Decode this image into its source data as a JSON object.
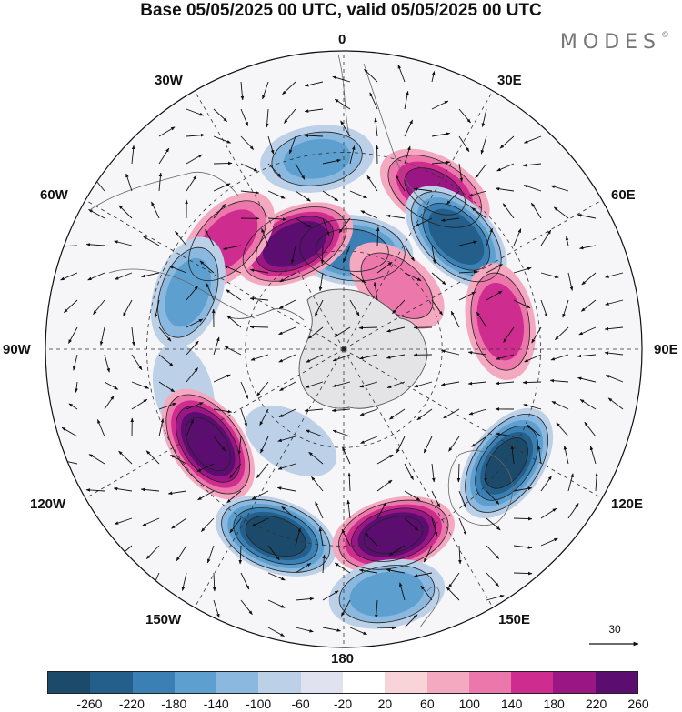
{
  "title": "Base 05/05/2025 00 UTC, valid 05/05/2025 00 UTC",
  "brand": "MODES",
  "brand_mark": "©",
  "longitude_labels": {
    "top": "0",
    "bottom": "180",
    "left": "90W",
    "right": "90E",
    "nw30": "30W",
    "ne30": "30E",
    "nw60": "60W",
    "ne60": "60E",
    "sw120": "120W",
    "se120": "120E",
    "sw150": "150W",
    "se150": "150E"
  },
  "vector_scale_label": "30",
  "colorbar": {
    "colors": [
      "#1b4a6b",
      "#235f8a",
      "#3a80b4",
      "#5d9fcf",
      "#8ab8de",
      "#bcd0e8",
      "#e1e2f0",
      "#ffffff",
      "#f8d4d8",
      "#f5a9c1",
      "#ec77ab",
      "#cf2c8f",
      "#9a1684",
      "#5b0d70"
    ],
    "ticks": [
      "-260",
      "-220",
      "-180",
      "-140",
      "-100",
      "-60",
      "-20",
      "20",
      "60",
      "100",
      "140",
      "180",
      "220",
      "260"
    ]
  },
  "chart_data": {
    "type": "heatmap",
    "projection": "south polar stereographic",
    "title": "Base 05/05/2025 00 UTC, valid 05/05/2025 00 UTC",
    "field_range": [
      -260,
      260
    ],
    "field_levels": [
      -260,
      -220,
      -180,
      -140,
      -100,
      -60,
      -20,
      20,
      60,
      100,
      140,
      180,
      220,
      260
    ],
    "vector_reference": 30,
    "anomaly_centers": [
      {
        "lon": -8,
        "colat": 58,
        "value": -120
      },
      {
        "lon": 30,
        "colat": 55,
        "value": 170
      },
      {
        "lon": 45,
        "colat": 48,
        "value": -230
      },
      {
        "lon": 5,
        "colat": 30,
        "value": -190
      },
      {
        "lon": -25,
        "colat": 35,
        "value": 230
      },
      {
        "lon": -47,
        "colat": 48,
        "value": 140
      },
      {
        "lon": -70,
        "colat": 50,
        "value": -130
      },
      {
        "lon": 80,
        "colat": 48,
        "value": 150
      },
      {
        "lon": -105,
        "colat": 50,
        "value": -60
      },
      {
        "lon": -125,
        "colat": 50,
        "value": 250
      },
      {
        "lon": -160,
        "colat": 60,
        "value": -260
      },
      {
        "lon": 165,
        "colat": 58,
        "value": 250
      },
      {
        "lon": 125,
        "colat": 60,
        "value": -240
      },
      {
        "lon": 40,
        "colat": 25,
        "value": 100
      },
      {
        "lon": 170,
        "colat": 75,
        "value": -140
      },
      {
        "lon": -150,
        "colat": 32,
        "value": -60
      }
    ]
  }
}
